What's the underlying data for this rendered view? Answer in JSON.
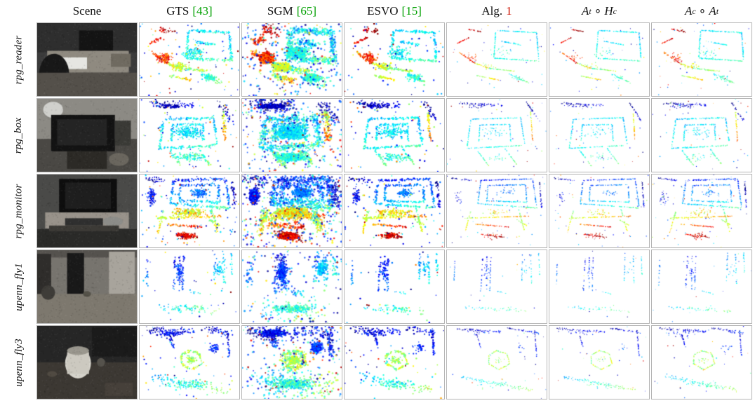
{
  "figure": {
    "columns": [
      {
        "id": "scene",
        "label": "Scene"
      },
      {
        "id": "gts",
        "label": "GTS",
        "cite": "[43]"
      },
      {
        "id": "sgm",
        "label": "SGM",
        "cite": "[65]"
      },
      {
        "id": "esvo",
        "label": "ESVO",
        "cite": "[15]"
      },
      {
        "id": "alg1",
        "label": "Alg.",
        "cite": "1"
      },
      {
        "id": "at-hc",
        "label": "At ∘ Hc",
        "math": {
          "m1": "A",
          "s1": "t",
          "op": "∘",
          "m2": "H",
          "s2": "c"
        }
      },
      {
        "id": "ac-at",
        "label": "Ac ∘ At",
        "math": {
          "m1": "A",
          "s1": "c",
          "op": "∘",
          "m2": "A",
          "s2": "t"
        }
      }
    ],
    "rows": [
      {
        "label": "rpg_reader"
      },
      {
        "label": "rpg_box"
      },
      {
        "label": "rpg_monitor"
      },
      {
        "label": "upenn_fly1"
      },
      {
        "label": "upenn_fly3"
      }
    ]
  },
  "colors": {
    "citation": "#00a000",
    "alg_number": "#cc1100",
    "cell_border": "#b5b5b5"
  },
  "render": {
    "palette": "jet",
    "column_styles": [
      {
        "key": "gts",
        "points": 950,
        "blobShare": 0.45,
        "jitter": 0.02,
        "size": [
          1.2,
          2.4
        ],
        "noise": 70,
        "cj": 0.07,
        "alpha": 1
      },
      {
        "key": "sgm",
        "points": 2800,
        "blobShare": 0.62,
        "jitter": 0.05,
        "size": [
          1.6,
          3.2
        ],
        "noise": 260,
        "cj": 0.12,
        "alpha": 0.8
      },
      {
        "key": "esvo",
        "points": 750,
        "blobShare": 0.35,
        "jitter": 0.016,
        "size": [
          1.4,
          2.6
        ],
        "noise": 60,
        "cj": 0.05,
        "alpha": 1
      },
      {
        "key": "alg1",
        "points": 560,
        "blobShare": 0.14,
        "jitter": 0.005,
        "size": [
          0.9,
          1.6
        ],
        "noise": 30,
        "cj": 0.04,
        "alpha": 1
      },
      {
        "key": "at-hc",
        "points": 540,
        "blobShare": 0.14,
        "jitter": 0.005,
        "size": [
          0.9,
          1.6
        ],
        "noise": 28,
        "cj": 0.04,
        "alpha": 1
      },
      {
        "key": "ac-at",
        "points": 600,
        "blobShare": 0.16,
        "jitter": 0.007,
        "size": [
          0.9,
          1.7
        ],
        "noise": 34,
        "cj": 0.05,
        "alpha": 1
      }
    ],
    "rows": [
      {
        "mult": 1.0,
        "scene": {
          "base": "#3b3b3b",
          "shapes": [
            [
              "r",
              0,
              0,
              1,
              0.4,
              "#2e2e2e"
            ],
            [
              "r",
              0.42,
              0.1,
              0.34,
              0.28,
              "#141414"
            ],
            [
              "r",
              0.1,
              0.38,
              0.82,
              0.3,
              "#8f8a80"
            ],
            [
              "r",
              0.22,
              0.47,
              0.28,
              0.16,
              "#e6e6e2"
            ],
            [
              "e",
              0.02,
              0.42,
              0.3,
              0.55,
              "#181818"
            ],
            [
              "r",
              0.74,
              0.42,
              0.2,
              0.18,
              "#6f6a60"
            ],
            [
              "r",
              0,
              0.68,
              1,
              0.32,
              "#54504a"
            ]
          ]
        },
        "strokes": [
          [
            0.5,
            0.1,
            0.9,
            0.13,
            0.33,
            0.4
          ],
          [
            0.49,
            0.11,
            0.47,
            0.48,
            0.35,
            0.43
          ],
          [
            0.9,
            0.13,
            0.92,
            0.5,
            0.3,
            0.38
          ],
          [
            0.47,
            0.48,
            0.92,
            0.52,
            0.38,
            0.46
          ],
          [
            0.1,
            0.28,
            0.22,
            0.2,
            0.82,
            0.95
          ],
          [
            0.12,
            0.4,
            0.28,
            0.55,
            0.75,
            0.92
          ],
          [
            0.28,
            0.55,
            0.42,
            0.62,
            0.55,
            0.72
          ],
          [
            0.42,
            0.62,
            0.68,
            0.66,
            0.42,
            0.58
          ],
          [
            0.3,
            0.72,
            0.52,
            0.78,
            0.5,
            0.7
          ],
          [
            0.62,
            0.7,
            0.82,
            0.82,
            0.35,
            0.5,
            2
          ],
          [
            0.2,
            0.08,
            0.34,
            0.12,
            0.88,
            1.0,
            2
          ],
          [
            0.55,
            0.25,
            0.75,
            0.3,
            0.3,
            0.4
          ]
        ],
        "blobs": [
          [
            0.25,
            0.48,
            0.1,
            0.1,
            0.72,
            0.95,
            1.2
          ],
          [
            0.55,
            0.4,
            0.15,
            0.1,
            0.3,
            0.48,
            1.0
          ],
          [
            0.4,
            0.6,
            0.12,
            0.08,
            0.48,
            0.68,
            1.0
          ],
          [
            0.7,
            0.75,
            0.1,
            0.07,
            0.33,
            0.5,
            0.8
          ]
        ]
      },
      {
        "mult": 1.0,
        "scene": {
          "base": "#8c8a84",
          "shapes": [
            [
              "r",
              0,
              0.55,
              1,
              0.45,
              "#4a4844"
            ],
            [
              "e",
              0.06,
              0.04,
              0.2,
              0.22,
              "#d0d0cc"
            ],
            [
              "r",
              0.14,
              0.22,
              0.64,
              0.5,
              "#131313"
            ],
            [
              "r",
              0.2,
              0.28,
              0.5,
              0.36,
              "#242424"
            ],
            [
              "r",
              0.78,
              0.3,
              0.16,
              0.34,
              "#3a3a36"
            ],
            [
              "r",
              0.3,
              0.72,
              0.4,
              0.24,
              "#2c2a26"
            ],
            [
              "e",
              0.72,
              0.74,
              0.2,
              0.18,
              "#6a665e"
            ]
          ]
        },
        "strokes": [
          [
            0.12,
            0.06,
            0.55,
            0.09,
            0.02,
            0.12,
            3
          ],
          [
            0.8,
            0.05,
            0.92,
            0.3,
            0.0,
            0.1,
            2.5
          ],
          [
            0.24,
            0.28,
            0.74,
            0.26,
            0.3,
            0.4
          ],
          [
            0.24,
            0.28,
            0.2,
            0.68,
            0.32,
            0.42
          ],
          [
            0.74,
            0.26,
            0.78,
            0.62,
            0.28,
            0.38
          ],
          [
            0.2,
            0.68,
            0.76,
            0.64,
            0.34,
            0.46
          ],
          [
            0.33,
            0.36,
            0.63,
            0.35,
            0.3,
            0.38
          ],
          [
            0.33,
            0.36,
            0.32,
            0.58,
            0.32,
            0.4
          ],
          [
            0.63,
            0.35,
            0.64,
            0.58,
            0.3,
            0.38
          ],
          [
            0.84,
            0.18,
            0.86,
            0.58,
            0.55,
            0.78
          ],
          [
            0.3,
            0.7,
            0.42,
            0.92,
            0.36,
            0.52
          ],
          [
            0.58,
            0.68,
            0.7,
            0.9,
            0.36,
            0.52
          ]
        ],
        "blobs": [
          [
            0.48,
            0.46,
            0.18,
            0.12,
            0.28,
            0.42,
            1.3
          ],
          [
            0.3,
            0.1,
            0.18,
            0.04,
            0.0,
            0.12,
            0.7
          ],
          [
            0.5,
            0.8,
            0.2,
            0.08,
            0.33,
            0.5,
            0.7
          ]
        ]
      },
      {
        "mult": 1.35,
        "scene": {
          "base": "#4a4a48",
          "shapes": [
            [
              "r",
              0,
              0.75,
              1,
              0.25,
              "#2a2a28"
            ],
            [
              "r",
              0.22,
              0.06,
              0.58,
              0.5,
              "#0e0e0e"
            ],
            [
              "r",
              0.28,
              0.11,
              0.46,
              0.36,
              "#1e1e1e"
            ],
            [
              "r",
              0.08,
              0.52,
              0.84,
              0.22,
              "#98928a"
            ],
            [
              "r",
              0.28,
              0.6,
              0.38,
              0.1,
              "#2f2f2f"
            ],
            [
              "e",
              0.66,
              0.58,
              0.2,
              0.13,
              "#8c8c88"
            ],
            [
              "r",
              0.12,
              0.7,
              0.7,
              0.08,
              "#3c3a36"
            ]
          ]
        },
        "strokes": [
          [
            0.34,
            0.08,
            0.86,
            0.06,
            0.12,
            0.22
          ],
          [
            0.86,
            0.06,
            0.9,
            0.44,
            0.15,
            0.3
          ],
          [
            0.34,
            0.08,
            0.31,
            0.4,
            0.18,
            0.32
          ],
          [
            0.31,
            0.4,
            0.9,
            0.46,
            0.3,
            0.48
          ],
          [
            0.41,
            0.15,
            0.79,
            0.14,
            0.18,
            0.28
          ],
          [
            0.41,
            0.15,
            0.4,
            0.36,
            0.22,
            0.32
          ],
          [
            0.79,
            0.14,
            0.8,
            0.37,
            0.2,
            0.3
          ],
          [
            0.4,
            0.36,
            0.8,
            0.38,
            0.28,
            0.4
          ],
          [
            0.18,
            0.6,
            0.82,
            0.57,
            0.55,
            0.75
          ],
          [
            0.28,
            0.68,
            0.62,
            0.72,
            0.7,
            0.9
          ],
          [
            0.34,
            0.82,
            0.58,
            0.86,
            0.85,
            1.0
          ],
          [
            0.24,
            0.5,
            0.18,
            0.8,
            0.5,
            0.68
          ],
          [
            0.72,
            0.48,
            0.78,
            0.78,
            0.45,
            0.62
          ],
          [
            0.05,
            0.05,
            0.25,
            0.08,
            0.0,
            0.12,
            2
          ],
          [
            0.93,
            0.1,
            0.95,
            0.45,
            0.0,
            0.12,
            1.5
          ],
          [
            0.7,
            0.62,
            0.8,
            0.7,
            0.48,
            0.62
          ]
        ],
        "blobs": [
          [
            0.5,
            0.52,
            0.22,
            0.08,
            0.5,
            0.75,
            1.2
          ],
          [
            0.46,
            0.84,
            0.12,
            0.06,
            0.8,
            1.0,
            1.0
          ],
          [
            0.6,
            0.25,
            0.12,
            0.08,
            0.18,
            0.3,
            0.8
          ],
          [
            0.12,
            0.3,
            0.06,
            0.15,
            0.05,
            0.2,
            0.6
          ]
        ]
      },
      {
        "mult": 0.35,
        "scene": {
          "base": "#77746e",
          "shapes": [
            [
              "r",
              0,
              0,
              1,
              0.1,
              "#55524e"
            ],
            [
              "r",
              0,
              0.05,
              0.14,
              0.6,
              "#2f2d2b"
            ],
            [
              "r",
              0.3,
              0.04,
              0.17,
              0.56,
              "#191919"
            ],
            [
              "r",
              0.72,
              0.02,
              0.26,
              0.58,
              "#a8a49c"
            ],
            [
              "r",
              0,
              0.6,
              1,
              0.4,
              "#7d786e"
            ],
            [
              "e",
              0.04,
              0.48,
              0.14,
              0.2,
              "#3e3c38"
            ],
            [
              "e",
              0.46,
              0.56,
              0.08,
              0.08,
              "#555249"
            ]
          ]
        },
        "strokes": [
          [
            0.36,
            0.08,
            0.34,
            0.56,
            0.1,
            0.22
          ],
          [
            0.44,
            0.08,
            0.43,
            0.56,
            0.12,
            0.25
          ],
          [
            0.4,
            0.08,
            0.4,
            0.56,
            0.12,
            0.24
          ],
          [
            0.08,
            0.12,
            0.07,
            0.48,
            0.18,
            0.28
          ],
          [
            0.76,
            0.04,
            0.75,
            0.42,
            0.22,
            0.34
          ],
          [
            0.84,
            0.06,
            0.85,
            0.46,
            0.28,
            0.4
          ],
          [
            0.92,
            0.02,
            0.93,
            0.35,
            0.3,
            0.42
          ],
          [
            0.18,
            0.78,
            0.8,
            0.84,
            0.32,
            0.5,
            4
          ],
          [
            0.5,
            0.56,
            0.62,
            0.6,
            0.28,
            0.42
          ]
        ],
        "blobs": [
          [
            0.4,
            0.3,
            0.05,
            0.18,
            0.1,
            0.26,
            1.2
          ],
          [
            0.5,
            0.8,
            0.28,
            0.07,
            0.32,
            0.52,
            0.9
          ],
          [
            0.8,
            0.25,
            0.06,
            0.15,
            0.25,
            0.4,
            0.7
          ]
        ]
      },
      {
        "mult": 0.7,
        "scene": {
          "base": "#262626",
          "shapes": [
            [
              "r",
              0,
              0.5,
              1,
              0.5,
              "#3c3833"
            ],
            [
              "r",
              0.55,
              0.02,
              0.45,
              0.4,
              "#1b1b1b"
            ],
            [
              "e",
              0.28,
              0.3,
              0.26,
              0.42,
              "#d6d4cc"
            ],
            [
              "r",
              0.3,
              0.36,
              0.22,
              0.3,
              "#ccc9c0"
            ],
            [
              "e",
              0.3,
              0.28,
              0.22,
              0.12,
              "#9a978e"
            ],
            [
              "e",
              0.6,
              0.44,
              0.08,
              0.12,
              "#55524c"
            ],
            [
              "r",
              0.68,
              0.78,
              0.28,
              0.18,
              "#46403a"
            ],
            [
              "e",
              0.1,
              0.62,
              0.1,
              0.08,
              "#504a42"
            ]
          ]
        },
        "strokes": [
          [
            0.08,
            0.04,
            0.55,
            0.08,
            0.02,
            0.15,
            3
          ],
          [
            0.6,
            0.03,
            0.92,
            0.1,
            0.02,
            0.18,
            3
          ],
          [
            0.88,
            0.06,
            0.9,
            0.42,
            0.04,
            0.18
          ],
          [
            0.42,
            0.4,
            0.5,
            0.34,
            0.45,
            0.6
          ],
          [
            0.5,
            0.34,
            0.6,
            0.38,
            0.45,
            0.6
          ],
          [
            0.6,
            0.38,
            0.63,
            0.52,
            0.48,
            0.64
          ],
          [
            0.63,
            0.52,
            0.52,
            0.6,
            0.48,
            0.66
          ],
          [
            0.52,
            0.6,
            0.42,
            0.52,
            0.46,
            0.62
          ],
          [
            0.42,
            0.52,
            0.42,
            0.4,
            0.44,
            0.58
          ],
          [
            0.14,
            0.7,
            0.86,
            0.88,
            0.3,
            0.55,
            5
          ],
          [
            0.3,
            0.12,
            0.34,
            0.3,
            0.05,
            0.18
          ]
        ],
        "blobs": [
          [
            0.3,
            0.1,
            0.18,
            0.06,
            0.04,
            0.2,
            1.0
          ],
          [
            0.52,
            0.47,
            0.07,
            0.07,
            0.46,
            0.62,
            0.8
          ],
          [
            0.5,
            0.8,
            0.3,
            0.09,
            0.3,
            0.52,
            1.0
          ],
          [
            0.75,
            0.3,
            0.08,
            0.1,
            0.1,
            0.25,
            0.6
          ]
        ]
      }
    ]
  }
}
